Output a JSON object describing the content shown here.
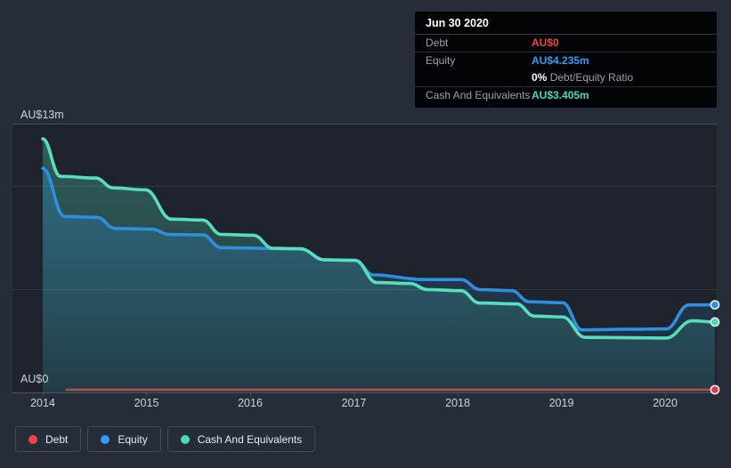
{
  "tooltip": {
    "date": "Jun 30 2020",
    "debt_label": "Debt",
    "debt_value": "AU$0",
    "equity_label": "Equity",
    "equity_value": "AU$4.235m",
    "ratio_value": "0%",
    "ratio_label": "Debt/Equity Ratio",
    "cash_label": "Cash And Equivalents",
    "cash_value": "AU$3.405m"
  },
  "legend": {
    "debt": "Debt",
    "equity": "Equity",
    "cash": "Cash And Equivalents"
  },
  "axes": {
    "y_top_label": "AU$13m",
    "y_bottom_label": "AU$0"
  },
  "colors": {
    "page_bg": "#272d38",
    "plot_bg": "#1d222b",
    "grid_weak": "#343a45",
    "grid_strong": "#4a515b",
    "axis_text": "#cdd3da",
    "debt": "#ee4444",
    "equity": "#2f9df2",
    "cash": "#44dcbd",
    "debt_line": "#c25553",
    "equity_line": "#2d8fdd",
    "cash_line": "#57debd",
    "debt_dot": "#e5393e",
    "equity_dot": "#2196f3",
    "cash_dot": "#45d8b8",
    "dot_ring": "#e9edf2"
  },
  "chart_data": {
    "type": "area",
    "description": "Debt / Equity / Cash And Equivalents history, AU$ millions, mid-2014 to Jun 30 2020",
    "x_axis": {
      "ticks": [
        2014,
        2015,
        2016,
        2017,
        2018,
        2019,
        2020
      ],
      "range": [
        2013.7,
        2020.62
      ]
    },
    "y_axis": {
      "top_label": "AU$13m",
      "bottom_label": "AU$0",
      "range_m": [
        0,
        13
      ],
      "gridlines_m": [
        13,
        10,
        5,
        0
      ]
    },
    "legend_position": "bottom-left",
    "series": [
      {
        "id": "debt",
        "name": "Debt",
        "unit": "AU$m",
        "points": [
          [
            2014.23,
            0
          ],
          [
            2020.48,
            0
          ]
        ]
      },
      {
        "id": "equity",
        "name": "Equity",
        "unit": "AU$m",
        "points": [
          [
            2014.0,
            10.84
          ],
          [
            2014.21,
            8.51
          ],
          [
            2014.52,
            8.47
          ],
          [
            2014.7,
            7.93
          ],
          [
            2015.05,
            7.9
          ],
          [
            2015.22,
            7.64
          ],
          [
            2015.54,
            7.62
          ],
          [
            2015.72,
            7.0
          ],
          [
            2016.48,
            6.94
          ],
          [
            2016.72,
            6.41
          ],
          [
            2017.01,
            6.39
          ],
          [
            2017.19,
            5.68
          ],
          [
            2017.68,
            5.46
          ],
          [
            2018.03,
            5.46
          ],
          [
            2018.22,
            4.97
          ],
          [
            2018.52,
            4.92
          ],
          [
            2018.69,
            4.38
          ],
          [
            2019.01,
            4.34
          ],
          [
            2019.2,
            3.02
          ],
          [
            2019.6,
            3.05
          ],
          [
            2020.01,
            3.07
          ],
          [
            2020.23,
            4.23
          ],
          [
            2020.48,
            4.235
          ]
        ]
      },
      {
        "id": "cash",
        "name": "Cash And Equivalents",
        "unit": "AU$m",
        "points": [
          [
            2014.0,
            12.27
          ],
          [
            2014.17,
            10.45
          ],
          [
            2014.51,
            10.37
          ],
          [
            2014.68,
            9.89
          ],
          [
            2014.99,
            9.8
          ],
          [
            2015.24,
            8.38
          ],
          [
            2015.54,
            8.34
          ],
          [
            2015.72,
            7.64
          ],
          [
            2016.03,
            7.6
          ],
          [
            2016.22,
            6.97
          ],
          [
            2016.48,
            6.95
          ],
          [
            2016.72,
            6.41
          ],
          [
            2017.01,
            6.39
          ],
          [
            2017.22,
            5.31
          ],
          [
            2017.54,
            5.27
          ],
          [
            2017.71,
            4.97
          ],
          [
            2018.03,
            4.92
          ],
          [
            2018.21,
            4.32
          ],
          [
            2018.57,
            4.28
          ],
          [
            2018.74,
            3.69
          ],
          [
            2019.01,
            3.65
          ],
          [
            2019.23,
            2.66
          ],
          [
            2020.01,
            2.63
          ],
          [
            2020.26,
            3.46
          ],
          [
            2020.48,
            3.405
          ]
        ]
      }
    ]
  }
}
